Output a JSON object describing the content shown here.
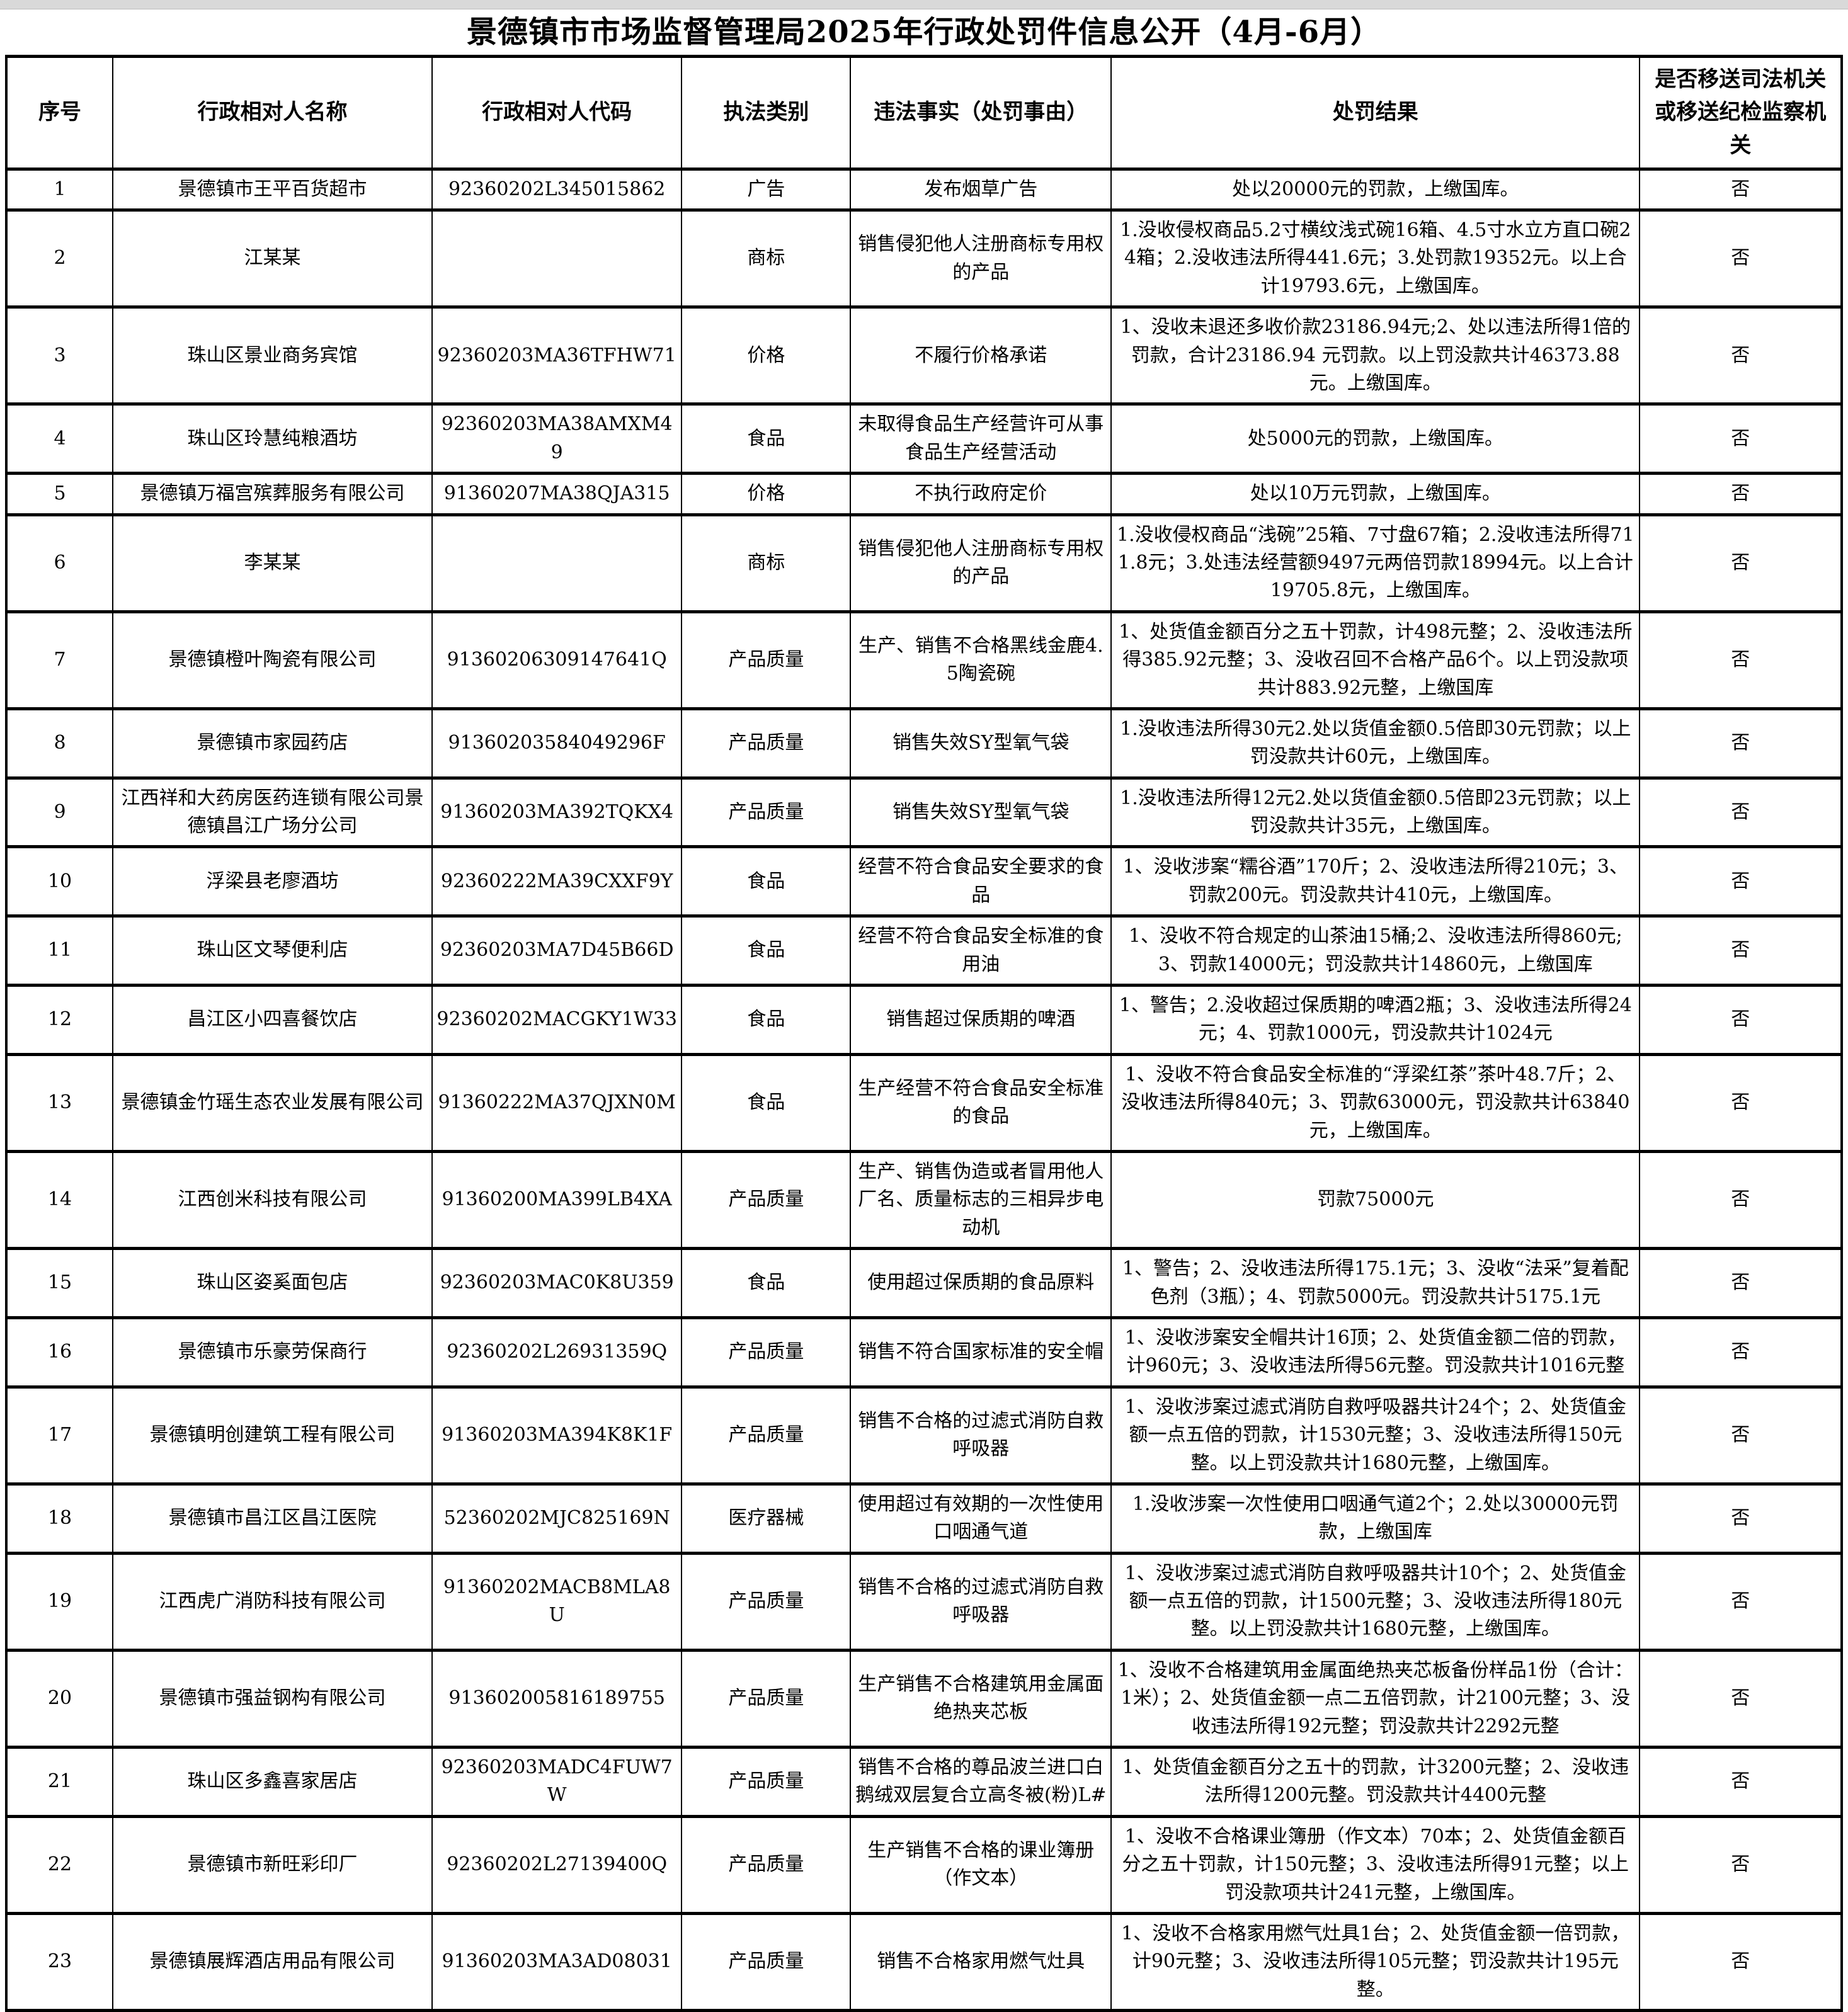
{
  "page_title": "景德镇市市场监督管理局2025年行政处罚件信息公开（4月-6月）",
  "table": {
    "columns": [
      "序号",
      "行政相对人名称",
      "行政相对人代码",
      "执法类别",
      "违法事实（处罚事由）",
      "处罚结果",
      "是否移送司法机关或移送纪检监察机关"
    ],
    "keys": [
      "no",
      "name",
      "code",
      "category",
      "fact",
      "result",
      "transfer"
    ],
    "rows": [
      {
        "no": "1",
        "name": "景德镇市王平百货超市",
        "code": "92360202L345015862",
        "category": "广告",
        "fact": "发布烟草广告",
        "result": "处以20000元的罚款，上缴国库。",
        "transfer": "否"
      },
      {
        "no": "2",
        "name": "江某某",
        "code": "",
        "category": "商标",
        "fact": "销售侵犯他人注册商标专用权的产品",
        "result": "1.没收侵权商品5.2寸横纹浅式碗16箱、4.5寸水立方直口碗24箱；2.没收违法所得441.6元；3.处罚款19352元。以上合计19793.6元，上缴国库。",
        "transfer": "否"
      },
      {
        "no": "3",
        "name": "珠山区景业商务宾馆",
        "code": "92360203MA36TFHW71",
        "category": "价格",
        "fact": "不履行价格承诺",
        "result": "1、没收未退还多收价款23186.94元;2、处以违法所得1倍的罚款，合计23186.94 元罚款。以上罚没款共计46373.88元。上缴国库。",
        "transfer": "否"
      },
      {
        "no": "4",
        "name": "珠山区玲慧纯粮酒坊",
        "code": "92360203MA38AMXM49",
        "category": "食品",
        "fact": "未取得食品生产经营许可从事食品生产经营活动",
        "result": "处5000元的罚款，上缴国库。",
        "transfer": "否"
      },
      {
        "no": "5",
        "name": "景德镇万福宫殡葬服务有限公司",
        "code": "91360207MA38QJA315",
        "category": "价格",
        "fact": "不执行政府定价",
        "result": "处以10万元罚款，上缴国库。",
        "transfer": "否"
      },
      {
        "no": "6",
        "name": "李某某",
        "code": "",
        "category": "商标",
        "fact": "销售侵犯他人注册商标专用权的产品",
        "result": "1.没收侵权商品“浅碗”25箱、7寸盘67箱；2.没收违法所得711.8元；3.处违法经营额9497元两倍罚款18994元。以上合计19705.8元，上缴国库。",
        "transfer": "否"
      },
      {
        "no": "7",
        "name": "景德镇橙叶陶瓷有限公司",
        "code": "91360206309147641Q",
        "category": "产品质量",
        "fact": "生产、销售不合格黑线金鹿4.5陶瓷碗",
        "result": "1、处货值金额百分之五十罚款，计498元整；2、没收违法所得385.92元整；3、没收召回不合格产品6个。以上罚没款项共计883.92元整，上缴国库",
        "transfer": "否"
      },
      {
        "no": "8",
        "name": "景德镇市家园药店",
        "code": "91360203584049296F",
        "category": "产品质量",
        "fact": "销售失效SY型氧气袋",
        "result": "1.没收违法所得30元2.处以货值金额0.5倍即30元罚款；以上罚没款共计60元，上缴国库。",
        "transfer": "否"
      },
      {
        "no": "9",
        "name": "江西祥和大药房医药连锁有限公司景德镇昌江广场分公司",
        "code": "91360203MA392TQKX4",
        "category": "产品质量",
        "fact": "销售失效SY型氧气袋",
        "result": "1.没收违法所得12元2.处以货值金额0.5倍即23元罚款；以上罚没款共计35元，上缴国库。",
        "transfer": "否"
      },
      {
        "no": "10",
        "name": "浮梁县老廖酒坊",
        "code": "92360222MA39CXXF9Y",
        "category": "食品",
        "fact": "经营不符合食品安全要求的食品",
        "result": "1、没收涉案“糯谷酒”170斤；2、没收违法所得210元；3、罚款200元。罚没款共计410元，上缴国库。",
        "transfer": "否"
      },
      {
        "no": "11",
        "name": "珠山区文琴便利店",
        "code": "92360203MA7D45B66D",
        "category": "食品",
        "fact": "经营不符合食品安全标准的食用油",
        "result": "1、没收不符合规定的山茶油15桶;2、没收违法所得860元; 3、罚款14000元；罚没款共计14860元，上缴国库",
        "transfer": "否"
      },
      {
        "no": "12",
        "name": "昌江区小四喜餐饮店",
        "code": "92360202MACGKY1W33",
        "category": "食品",
        "fact": "销售超过保质期的啤酒",
        "result": "1、警告；2.没收超过保质期的啤酒2瓶；3、没收违法所得24元；4、罚款1000元，罚没款共计1024元",
        "transfer": "否"
      },
      {
        "no": "13",
        "name": "景德镇金竹瑶生态农业发展有限公司",
        "code": "91360222MA37QJXN0M",
        "category": "食品",
        "fact": "生产经营不符合食品安全标准的食品",
        "result": "1、没收不符合食品安全标准的“浮梁红茶”茶叶48.7斤；2、没收违法所得840元；3、罚款63000元，罚没款共计63840元，上缴国库。",
        "transfer": "否"
      },
      {
        "no": "14",
        "name": "江西创米科技有限公司",
        "code": "91360200MA399LB4XA",
        "category": "产品质量",
        "fact": "生产、销售伪造或者冒用他人厂名、质量标志的三相异步电动机",
        "result": "罚款75000元",
        "transfer": "否"
      },
      {
        "no": "15",
        "name": "珠山区姿奚面包店",
        "code": "92360203MAC0K8U359",
        "category": "食品",
        "fact": "使用超过保质期的食品原料",
        "result": "1、警告；2、没收违法所得175.1元；3、没收“法采”复着配色剂（3瓶）；4、罚款5000元。罚没款共计5175.1元",
        "transfer": "否"
      },
      {
        "no": "16",
        "name": "景德镇市乐豪劳保商行",
        "code": "92360202L26931359Q",
        "category": "产品质量",
        "fact": "销售不符合国家标准的安全帽",
        "result": "1、没收涉案安全帽共计16顶；2、处货值金额二倍的罚款，计960元；3、没收违法所得56元整。罚没款共计1016元整",
        "transfer": "否"
      },
      {
        "no": "17",
        "name": "景德镇明创建筑工程有限公司",
        "code": "91360203MA394K8K1F",
        "category": "产品质量",
        "fact": "销售不合格的过滤式消防自救呼吸器",
        "result": "1、没收涉案过滤式消防自救呼吸器共计24个；2、处货值金额一点五倍的罚款，计1530元整；3、没收违法所得150元整。以上罚没款共计1680元整，上缴国库。",
        "transfer": "否"
      },
      {
        "no": "18",
        "name": "景德镇市昌江区昌江医院",
        "code": "52360202MJC825169N",
        "category": "医疗器械",
        "fact": "使用超过有效期的一次性使用口咽通气道",
        "result": "1.没收涉案一次性使用口咽通气道2个；2.处以30000元罚款，上缴国库",
        "transfer": "否"
      },
      {
        "no": "19",
        "name": "江西虎广消防科技有限公司",
        "code": "91360202MACB8MLA8U",
        "category": "产品质量",
        "fact": "销售不合格的过滤式消防自救呼吸器",
        "result": "1、没收涉案过滤式消防自救呼吸器共计10个；2、处货值金额一点五倍的罚款，计1500元整；3、没收违法所得180元整。以上罚没款共计1680元整，上缴国库。",
        "transfer": "否"
      },
      {
        "no": "20",
        "name": "景德镇市强益钢构有限公司",
        "code": "913602005816189755",
        "category": "产品质量",
        "fact": "生产销售不合格建筑用金属面绝热夹芯板",
        "result": "1、没收不合格建筑用金属面绝热夹芯板备份样品1份（合计：1米）；2、处货值金额一点二五倍罚款，计2100元整；3、没收违法所得192元整；罚没款共计2292元整",
        "transfer": "否"
      },
      {
        "no": "21",
        "name": "珠山区多鑫喜家居店",
        "code": "92360203MADC4FUW7W",
        "category": "产品质量",
        "fact": "销售不合格的尊品波兰进口白鹅绒双层复合立高冬被(粉)L#",
        "result": "1、处货值金额百分之五十的罚款，计3200元整；2、没收违法所得1200元整。罚没款共计4400元整",
        "transfer": "否"
      },
      {
        "no": "22",
        "name": "景德镇市新旺彩印厂",
        "code": "92360202L27139400Q",
        "category": "产品质量",
        "fact": "生产销售不合格的课业簿册（作文本）",
        "result": "1、没收不合格课业簿册（作文本）70本；2、处货值金额百分之五十罚款，计150元整；3、没收违法所得91元整；以上罚没款项共计241元整，上缴国库。",
        "transfer": "否"
      },
      {
        "no": "23",
        "name": "景德镇展辉酒店用品有限公司",
        "code": "91360203MA3AD08031",
        "category": "产品质量",
        "fact": "销售不合格家用燃气灶具",
        "result": "1、没收不合格家用燃气灶具1台；2、处货值金额一倍罚款，计90元整；3、没收违法所得105元整；罚没款共计195元整。",
        "transfer": "否"
      }
    ]
  }
}
